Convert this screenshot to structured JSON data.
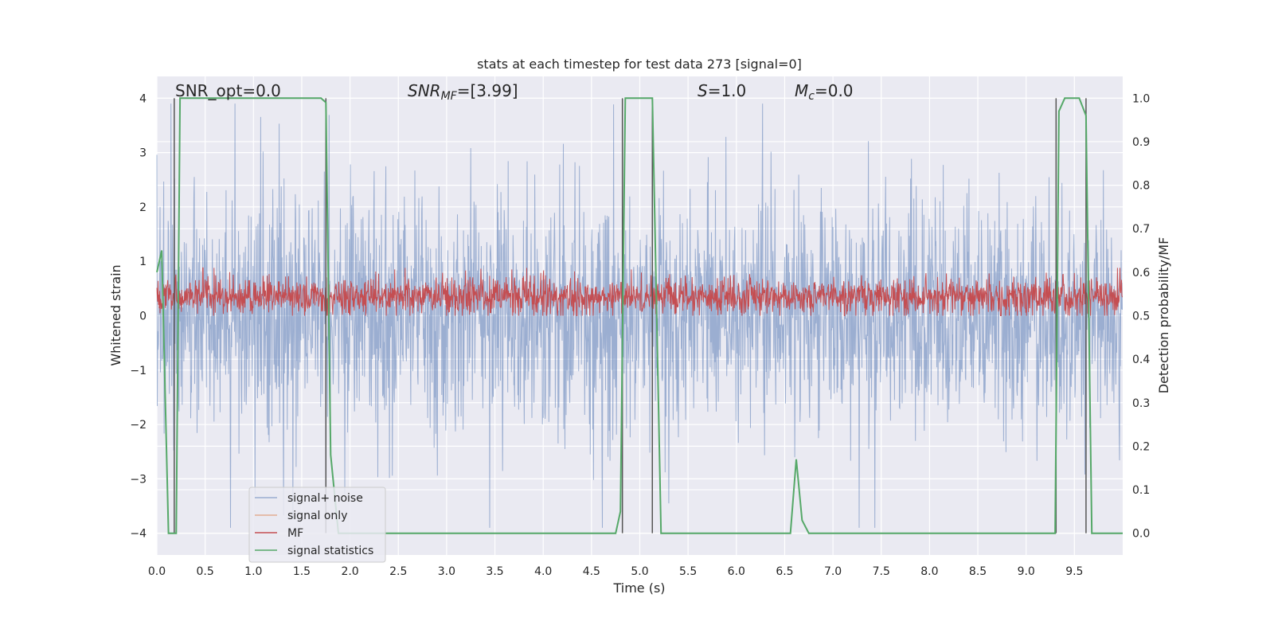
{
  "chart_data": {
    "type": "line",
    "title": "stats at each timestep for test data 273 [signal=0]",
    "xlabel": "Time (s)",
    "ylabel_left": "Whitened strain",
    "ylabel_right": "Detection probability/MF",
    "xlim": [
      0.0,
      10.0
    ],
    "ylim_left": [
      -4.4,
      4.4
    ],
    "ylim_right": [
      -0.05,
      1.05
    ],
    "x_ticks": [
      "0.0",
      "0.5",
      "1.0",
      "1.5",
      "2.0",
      "2.5",
      "3.0",
      "3.5",
      "4.0",
      "4.5",
      "5.0",
      "5.5",
      "6.0",
      "6.5",
      "7.0",
      "7.5",
      "8.0",
      "8.5",
      "9.0",
      "9.5"
    ],
    "y_ticks_left": [
      "4",
      "3",
      "2",
      "1",
      "0",
      "−1",
      "−2",
      "−3",
      "−4"
    ],
    "y_ticks_right": [
      "1.0",
      "0.9",
      "0.8",
      "0.7",
      "0.6",
      "0.5",
      "0.4",
      "0.3",
      "0.2",
      "0.1",
      "0.0"
    ],
    "grid": true,
    "background_color": "#eaeaf2",
    "legend_position": "lower-left",
    "annotations": {
      "snr_opt": "SNR_opt=0.0",
      "snr_mf_base": "SNR",
      "snr_mf_sub": "MF",
      "snr_mf_val": "=[3.99]",
      "s_base": "S",
      "s_val": "=1.0",
      "mc_base": "M",
      "mc_sub": "c",
      "mc_val": "=0.0"
    },
    "series": [
      {
        "name": "signal+ noise",
        "color": "#4c72b0",
        "style": "noisy strain, amplitude about ±2 with spikes to ±4"
      },
      {
        "name": "signal only",
        "color": "#dd8452",
        "values": []
      },
      {
        "name": "MF",
        "color": "#c44e52",
        "axis": "right",
        "style": "matched filter output fluctuating between 0.5 and 0.6"
      },
      {
        "name": "signal statistics",
        "color": "#55a868",
        "axis": "right",
        "x": [
          0.0,
          0.05,
          0.12,
          0.2,
          0.24,
          0.3,
          1.0,
          1.7,
          1.75,
          1.8,
          1.88,
          2.0,
          3.0,
          4.75,
          4.8,
          4.85,
          4.9,
          5.0,
          5.13,
          5.22,
          5.3,
          6.0,
          6.56,
          6.62,
          6.68,
          6.75,
          7.0,
          8.0,
          9.3,
          9.34,
          9.4,
          9.5,
          9.55,
          9.62,
          9.68,
          9.75,
          10.0
        ],
        "y": [
          0.6,
          0.65,
          0.0,
          0.0,
          1.0,
          1.0,
          1.0,
          1.0,
          0.99,
          0.18,
          0.0,
          0.0,
          0.0,
          0.0,
          0.05,
          1.0,
          1.0,
          1.0,
          1.0,
          0.0,
          0.0,
          0.0,
          0.0,
          0.17,
          0.03,
          0.0,
          0.0,
          0.0,
          0.0,
          0.97,
          1.0,
          1.0,
          1.0,
          0.96,
          0.0,
          0.0,
          0.0
        ]
      }
    ],
    "vertical_lines_x": [
      0.18,
      1.75,
      4.82,
      5.13,
      9.31,
      9.62
    ],
    "vertical_lines_color": "#555555"
  }
}
